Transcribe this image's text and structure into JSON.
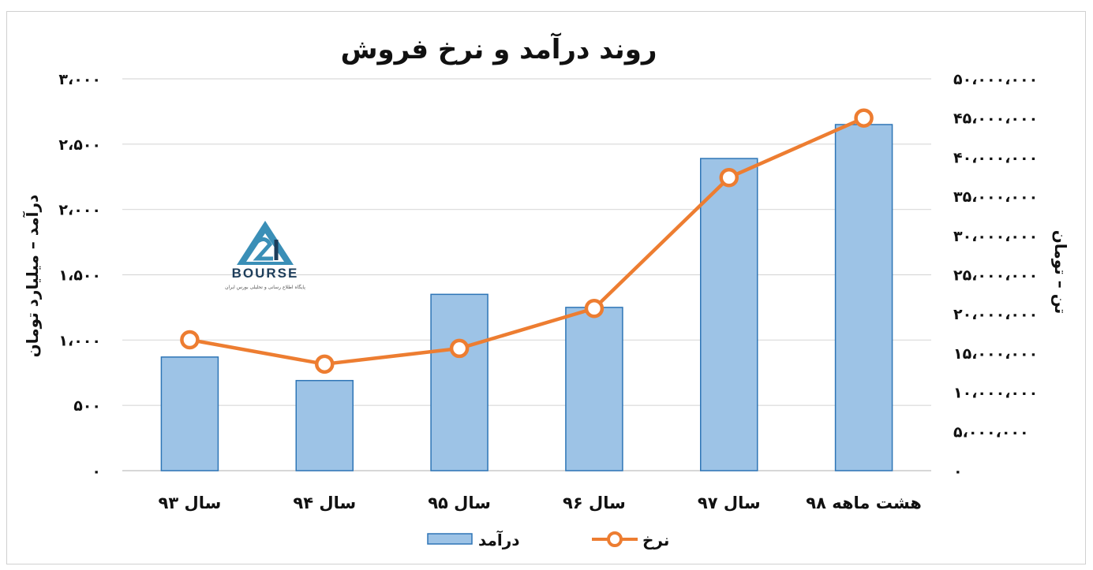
{
  "chart_data": {
    "type": "bar",
    "title": "روند درآمد و نرخ فروش",
    "categories": [
      "سال ۹۳",
      "سال ۹۴",
      "سال ۹۵",
      "سال ۹۶",
      "سال ۹۷",
      "هشت ماهه ۹۸"
    ],
    "left_axis": {
      "label": "درآمد – میلیارد تومان",
      "range": [
        0,
        3000
      ],
      "ticks": [
        0,
        500,
        1000,
        1500,
        2000,
        2500,
        3000
      ],
      "tick_labels": [
        "۰",
        "۵۰۰",
        "۱،۰۰۰",
        "۱،۵۰۰",
        "۲،۰۰۰",
        "۲،۵۰۰",
        "۳،۰۰۰"
      ]
    },
    "right_axis": {
      "label": "تن – تومان",
      "range": [
        0,
        50000000
      ],
      "ticks": [
        0,
        5000000,
        10000000,
        15000000,
        20000000,
        25000000,
        30000000,
        35000000,
        40000000,
        45000000,
        50000000
      ],
      "tick_labels": [
        "۰",
        "۵،۰۰۰،۰۰۰",
        "۱۰،۰۰۰،۰۰۰",
        "۱۵،۰۰۰،۰۰۰",
        "۲۰،۰۰۰،۰۰۰",
        "۲۵،۰۰۰،۰۰۰",
        "۳۰،۰۰۰،۰۰۰",
        "۳۵،۰۰۰،۰۰۰",
        "۴۰،۰۰۰،۰۰۰",
        "۴۵،۰۰۰،۰۰۰",
        "۵۰،۰۰۰،۰۰۰"
      ]
    },
    "series": [
      {
        "name": "درآمد",
        "type": "bar",
        "axis": "left",
        "values": [
          870,
          690,
          1350,
          1250,
          2390,
          2650
        ]
      },
      {
        "name": "نرخ",
        "type": "line",
        "axis": "right",
        "values": [
          16700000,
          13600000,
          15600000,
          20700000,
          37400000,
          45000000
        ]
      }
    ],
    "grid": true,
    "legend_position": "bottom",
    "colors": {
      "bar_fill": "#9dc3e6",
      "bar_stroke": "#2e75b6",
      "line": "#ed7d31",
      "grid": "#d9d9d9"
    }
  },
  "watermark": {
    "brand": "BOURSE",
    "number": "24",
    "subtitle": "پایگاه اطلاع رسانی و تحلیلی بورس ایران"
  }
}
